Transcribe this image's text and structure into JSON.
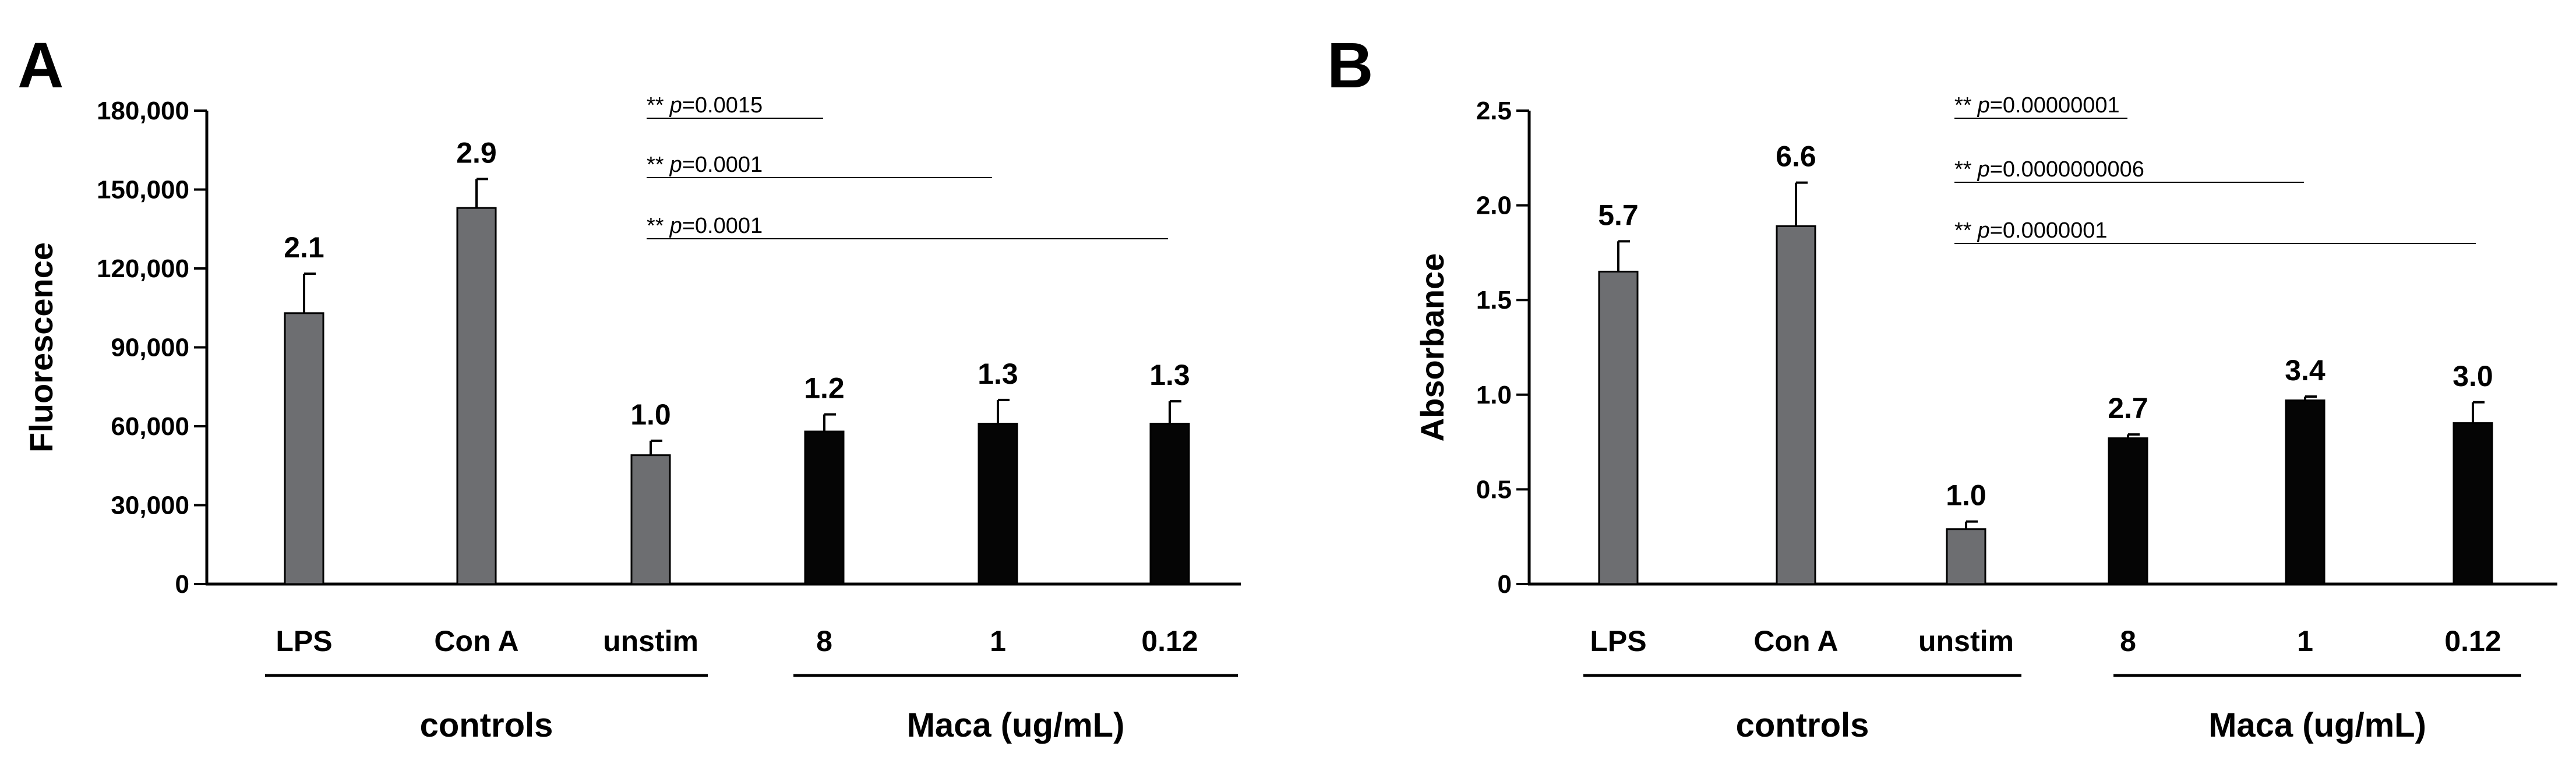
{
  "chart_data": [
    {
      "type": "bar",
      "panel_label": "A",
      "title": "",
      "xlabel": "",
      "ylabel": "Fluorescence",
      "ylim": [
        0,
        180000
      ],
      "yticks": [
        0,
        30000,
        60000,
        90000,
        120000,
        150000,
        180000
      ],
      "ytick_labels": [
        "0",
        "30,000",
        "60,000",
        "90,000",
        "120,000",
        "150,000",
        "180,000"
      ],
      "categories": [
        "LPS",
        "Con A",
        "unstim",
        "8",
        "1",
        "0.12"
      ],
      "values": [
        103000,
        143000,
        49000,
        58000,
        61000,
        61000
      ],
      "errors": [
        15000,
        11000,
        5500,
        6500,
        9000,
        8500
      ],
      "data_labels": [
        "2.1",
        "2.9",
        "1.0",
        "1.2",
        "1.3",
        "1.3"
      ],
      "bar_colors": [
        "#6d6e71",
        "#6d6e71",
        "#6d6e71",
        "#050505",
        "#050505",
        "#050505"
      ],
      "groups": [
        {
          "label": "controls",
          "members": [
            0,
            2
          ]
        },
        {
          "label": "Maca (ug/mL)",
          "members": [
            3,
            5
          ]
        }
      ],
      "significance": [
        {
          "stars": "**",
          "p_label": "p",
          "p_value": "=0.0015",
          "from": 2,
          "to": 3
        },
        {
          "stars": "**",
          "p_label": "p",
          "p_value": "=0.0001",
          "from": 2,
          "to": 4
        },
        {
          "stars": "**",
          "p_label": "p",
          "p_value": "=0.0001",
          "from": 2,
          "to": 5
        }
      ]
    },
    {
      "type": "bar",
      "panel_label": "B",
      "title": "",
      "xlabel": "",
      "ylabel": "Absorbance",
      "ylim": [
        0,
        2.5
      ],
      "yticks": [
        0,
        0.5,
        1.0,
        1.5,
        2.0,
        2.5
      ],
      "ytick_labels": [
        "0",
        "0.5",
        "1.0",
        "1.5",
        "2.0",
        "2.5"
      ],
      "categories": [
        "LPS",
        "Con A",
        "unstim",
        "8",
        "1",
        "0.12"
      ],
      "values": [
        1.65,
        1.89,
        0.29,
        0.77,
        0.97,
        0.85
      ],
      "errors": [
        0.16,
        0.23,
        0.04,
        0.02,
        0.02,
        0.11
      ],
      "data_labels": [
        "5.7",
        "6.6",
        "1.0",
        "2.7",
        "3.4",
        "3.0"
      ],
      "bar_colors": [
        "#6d6e71",
        "#6d6e71",
        "#6d6e71",
        "#050505",
        "#050505",
        "#050505"
      ],
      "groups": [
        {
          "label": "controls",
          "members": [
            0,
            2
          ]
        },
        {
          "label": "Maca (ug/mL)",
          "members": [
            3,
            5
          ]
        }
      ],
      "significance": [
        {
          "stars": "**",
          "p_label": "p",
          "p_value": "=0.00000001",
          "from": 2,
          "to": 3
        },
        {
          "stars": "**",
          "p_label": "p",
          "p_value": "=0.0000000006",
          "from": 2,
          "to": 4
        },
        {
          "stars": "**",
          "p_label": "p",
          "p_value": "=0.0000001",
          "from": 2,
          "to": 5
        }
      ]
    }
  ]
}
